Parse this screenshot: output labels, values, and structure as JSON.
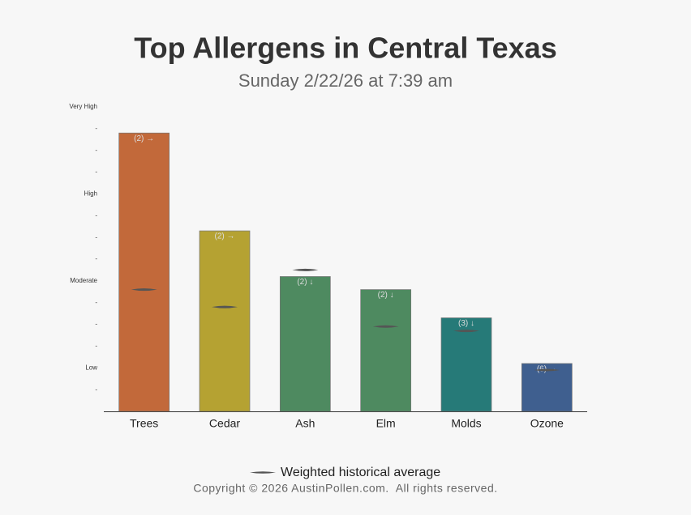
{
  "chart_data": {
    "type": "bar",
    "title": "Top Allergens in Central Texas",
    "subtitle": "Sunday 2/22/26 at 7:39 am",
    "categories": [
      "Trees",
      "Cedar",
      "Ash",
      "Elm",
      "Molds",
      "Ozone"
    ],
    "values": [
      12.8,
      8.3,
      6.2,
      5.6,
      4.3,
      2.2
    ],
    "value_labels": [
      "(2) →",
      "(2) →",
      "(2) ↓",
      "(2) ↓",
      "(3) ↓",
      "(6) →"
    ],
    "colors": [
      "#c2693a",
      "#b5a232",
      "#4e8a60",
      "#4e8a60",
      "#267a78",
      "#3f5f8f"
    ],
    "average": {
      "name": "Weighted historical average",
      "color": "#555555",
      "values": [
        5.6,
        4.8,
        6.5,
        3.9,
        3.7,
        1.9
      ]
    },
    "ylim": [
      0,
      14
    ],
    "yticks": [
      {
        "value": 1,
        "label": "-"
      },
      {
        "value": 2,
        "label": "Low"
      },
      {
        "value": 3,
        "label": "-"
      },
      {
        "value": 4,
        "label": "-"
      },
      {
        "value": 5,
        "label": "-"
      },
      {
        "value": 6,
        "label": "Moderate"
      },
      {
        "value": 7,
        "label": "-"
      },
      {
        "value": 8,
        "label": "-"
      },
      {
        "value": 9,
        "label": "-"
      },
      {
        "value": 10,
        "label": "High"
      },
      {
        "value": 11,
        "label": "-"
      },
      {
        "value": 12,
        "label": "-"
      },
      {
        "value": 13,
        "label": "-"
      },
      {
        "value": 14,
        "label": "Very High"
      }
    ]
  },
  "footer": "Copyright © 2026 AustinPollen.com.  All rights reserved."
}
